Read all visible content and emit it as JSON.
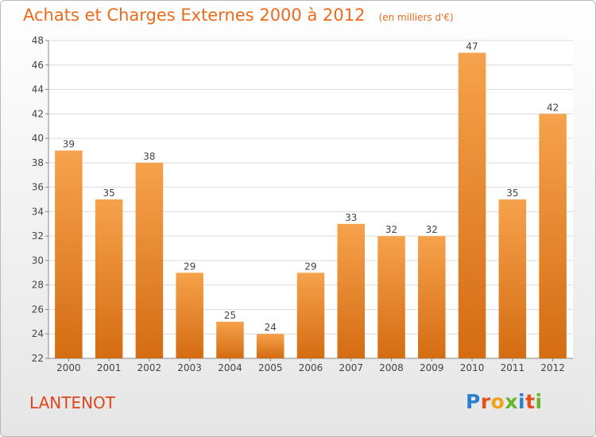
{
  "header": {
    "title": "Achats et Charges Externes 2000 à 2012",
    "subtitle": "(en milliers d'€)"
  },
  "footer": {
    "location": "LANTENOT",
    "brand": "Proxiti"
  },
  "colors": {
    "title": "#ee6a1a",
    "location": "#e0451e",
    "bar_light": "#f6a24c",
    "bar_dark": "#d46c12",
    "grid": "#dcdcdc",
    "brand_letters": [
      "#2a7fce",
      "#e2511e",
      "#f0a21a",
      "#67b626",
      "#2a7fce",
      "#e2511e",
      "#67b626"
    ]
  },
  "chart_data": {
    "type": "bar",
    "title": "Achats et Charges Externes 2000 à 2012",
    "subtitle": "(en milliers d'€)",
    "categories": [
      "2000",
      "2001",
      "2002",
      "2003",
      "2004",
      "2005",
      "2006",
      "2007",
      "2008",
      "2009",
      "2010",
      "2011",
      "2012"
    ],
    "values": [
      39,
      35,
      38,
      29,
      25,
      24,
      29,
      33,
      32,
      32,
      47,
      35,
      42
    ],
    "ylim": [
      22,
      48
    ],
    "yticks": [
      22,
      24,
      26,
      28,
      30,
      32,
      34,
      36,
      38,
      40,
      42,
      44,
      46,
      48
    ],
    "grid": true,
    "data_labels": true
  }
}
